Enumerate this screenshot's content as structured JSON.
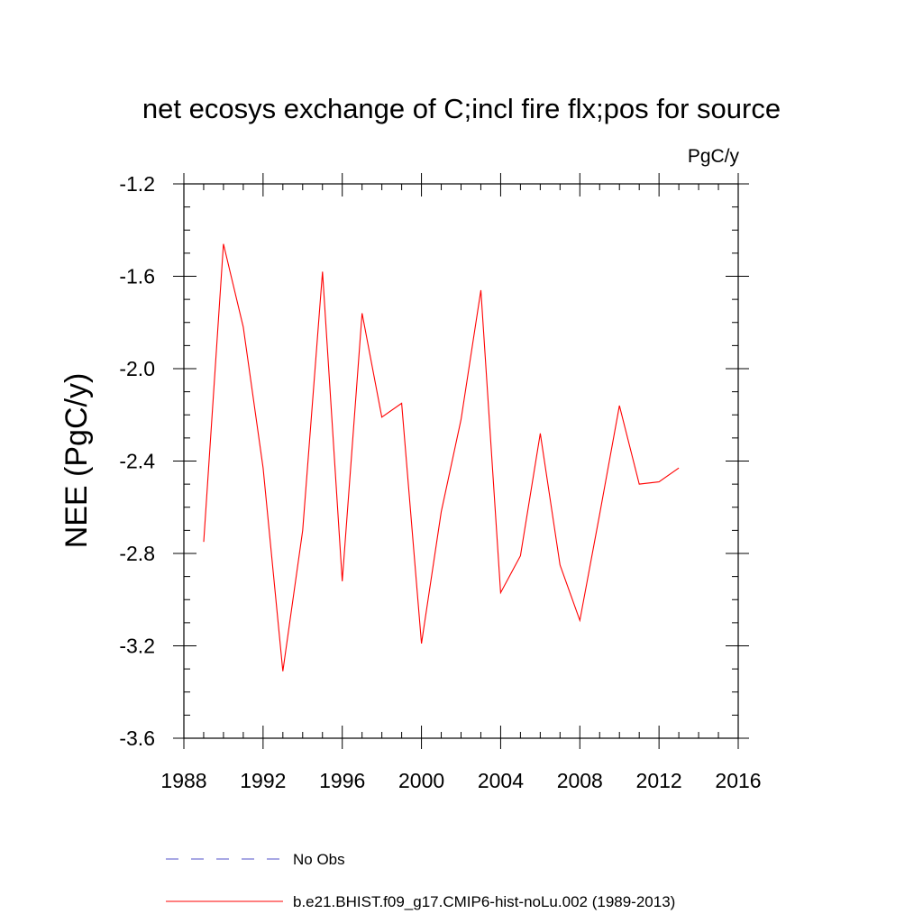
{
  "chart_data": {
    "type": "line",
    "title": "net ecosys exchange of C;incl fire flx;pos for source",
    "units": "PgC/y",
    "ylabel": "NEE  (PgC/y)",
    "xlabel": "",
    "xlim": [
      1988,
      2016
    ],
    "ylim": [
      -3.6,
      -1.2
    ],
    "x_ticks": [
      1988,
      1992,
      1996,
      2000,
      2004,
      2008,
      2012,
      2016
    ],
    "y_ticks": [
      -1.2,
      -1.6,
      -2.0,
      -2.4,
      -2.8,
      -3.2,
      -3.6
    ],
    "x_tick_labels": [
      "1988",
      "1992",
      "1996",
      "2000",
      "2004",
      "2008",
      "2012",
      "2016"
    ],
    "y_tick_labels": [
      "-1.2",
      "-1.6",
      "-2.0",
      "-2.4",
      "-2.8",
      "-3.2",
      "-3.6"
    ],
    "grid": false,
    "legend_position": "bottom",
    "series": [
      {
        "name": "No Obs",
        "color": "#5050c8",
        "dash": "dashed",
        "x": [],
        "values": []
      },
      {
        "name": "b.e21.BHIST.f09_g17.CMIP6-hist-noLu.002 (1989-2013)",
        "color": "#ff0000",
        "dash": "solid",
        "x": [
          1989,
          1990,
          1991,
          1992,
          1993,
          1994,
          1995,
          1996,
          1997,
          1998,
          1999,
          2000,
          2001,
          2002,
          2003,
          2004,
          2005,
          2006,
          2007,
          2008,
          2009,
          2010,
          2011,
          2012,
          2013
        ],
        "values": [
          -2.75,
          -1.46,
          -1.82,
          -2.43,
          -3.31,
          -2.7,
          -1.58,
          -2.92,
          -1.76,
          -2.21,
          -2.15,
          -3.19,
          -2.62,
          -2.22,
          -1.66,
          -2.97,
          -2.81,
          -2.28,
          -2.85,
          -3.09,
          -2.63,
          -2.16,
          -2.5,
          -2.49,
          -2.43
        ]
      }
    ]
  }
}
